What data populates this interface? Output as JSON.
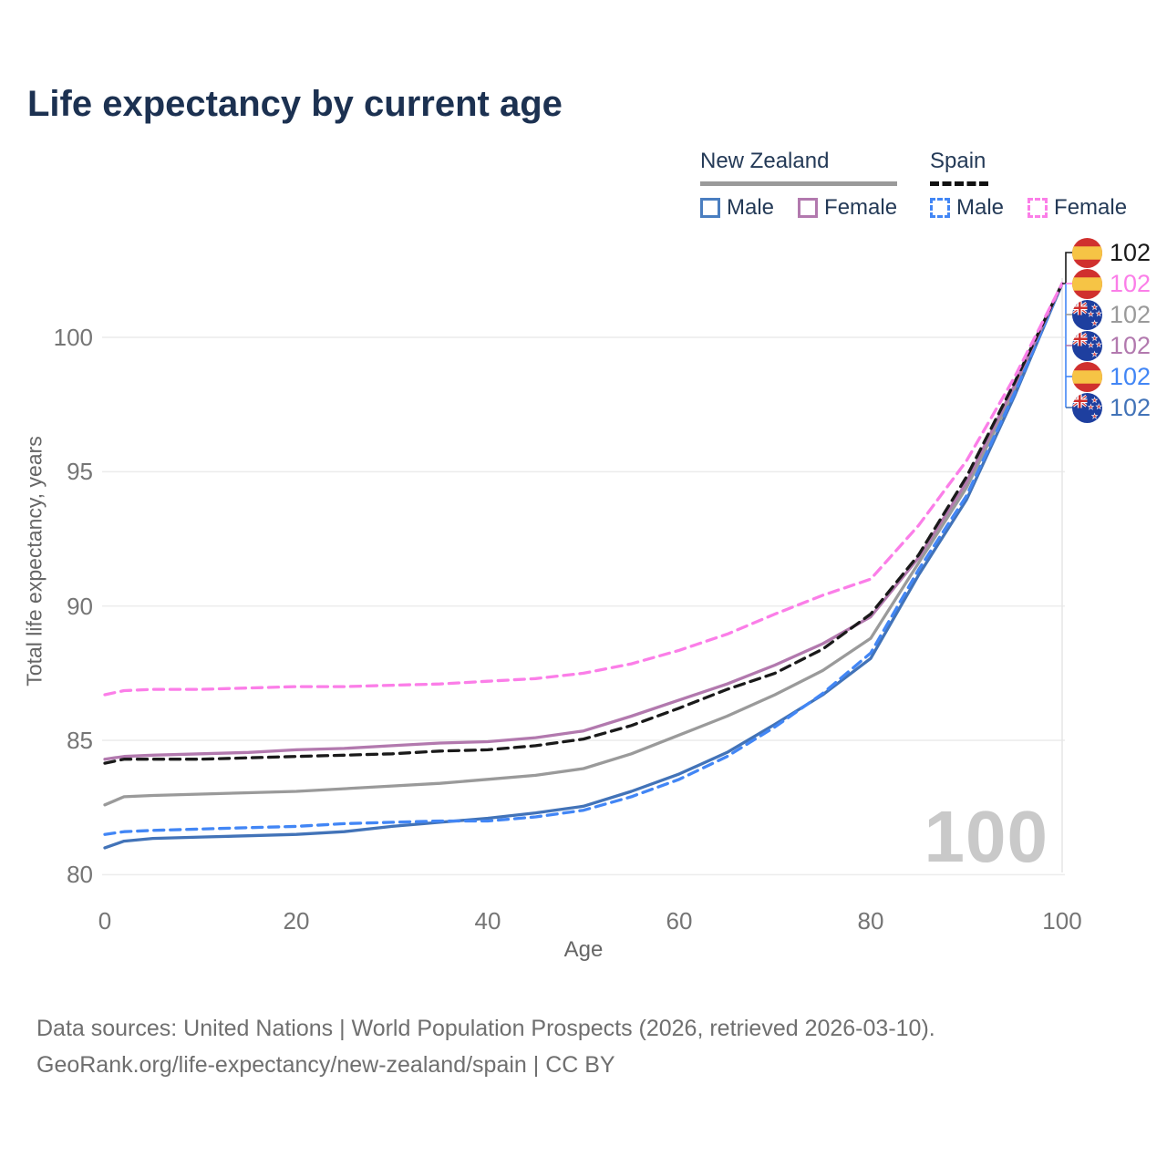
{
  "title": "Life expectancy by current age",
  "legend": {
    "groups": [
      {
        "name": "New Zealand",
        "items": [
          {
            "label": "Male"
          },
          {
            "label": "Female"
          }
        ]
      },
      {
        "name": "Spain",
        "items": [
          {
            "label": "Male"
          },
          {
            "label": "Female"
          }
        ]
      }
    ]
  },
  "chart_data": {
    "type": "line",
    "title": "Life expectancy by current age",
    "xlabel": "Age",
    "ylabel": "Total life expectancy, years",
    "xlim": [
      0,
      100
    ],
    "ylim": [
      79.5,
      102.5
    ],
    "xticks": [
      0,
      20,
      40,
      60,
      80,
      100
    ],
    "yticks": [
      80,
      85,
      90,
      95,
      100
    ],
    "grid": "horizontal",
    "legend_position": "top-right",
    "hover_age": "100",
    "x": [
      0,
      2,
      5,
      10,
      15,
      20,
      25,
      30,
      35,
      40,
      45,
      50,
      55,
      60,
      65,
      70,
      75,
      80,
      85,
      90,
      95,
      100
    ],
    "series": [
      {
        "id": "nz-total",
        "name": "New Zealand",
        "country": "new-zealand",
        "sex": "total",
        "color": "#9a9a9a",
        "dash": false,
        "values": [
          82.6,
          82.9,
          82.95,
          83.0,
          83.05,
          83.1,
          83.2,
          83.3,
          83.4,
          83.55,
          83.7,
          83.95,
          84.5,
          85.2,
          85.9,
          86.7,
          87.6,
          88.8,
          91.6,
          94.4,
          98.0,
          102
        ]
      },
      {
        "id": "nz-male",
        "name": "New Zealand Male",
        "country": "new-zealand",
        "sex": "male",
        "color": "#4273b8",
        "dash": false,
        "values": [
          81.0,
          81.25,
          81.35,
          81.4,
          81.45,
          81.5,
          81.6,
          81.8,
          81.95,
          82.1,
          82.3,
          82.55,
          83.1,
          83.75,
          84.55,
          85.6,
          86.7,
          88.05,
          91.15,
          93.95,
          97.8,
          102
        ]
      },
      {
        "id": "spain-male",
        "name": "Spain Male",
        "country": "spain",
        "sex": "male",
        "color": "#4286f5",
        "dash": true,
        "values": [
          81.5,
          81.6,
          81.65,
          81.7,
          81.75,
          81.8,
          81.9,
          81.95,
          82.0,
          82.0,
          82.15,
          82.4,
          82.9,
          83.55,
          84.4,
          85.5,
          86.75,
          88.25,
          91.35,
          94.1,
          97.9,
          102
        ]
      },
      {
        "id": "nz-female",
        "name": "New Zealand Female",
        "country": "new-zealand",
        "sex": "female",
        "color": "#b279ae",
        "dash": false,
        "values": [
          84.3,
          84.4,
          84.45,
          84.5,
          84.55,
          84.65,
          84.7,
          84.8,
          84.9,
          84.95,
          85.1,
          85.35,
          85.9,
          86.5,
          87.1,
          87.8,
          88.6,
          89.6,
          91.8,
          94.6,
          98.2,
          102
        ]
      },
      {
        "id": "spain-total",
        "name": "Spain",
        "country": "spain",
        "sex": "total",
        "color": "#1a1a1a",
        "dash": true,
        "values": [
          84.15,
          84.3,
          84.3,
          84.3,
          84.35,
          84.4,
          84.45,
          84.5,
          84.6,
          84.65,
          84.8,
          85.05,
          85.55,
          86.2,
          86.9,
          87.5,
          88.4,
          89.7,
          91.9,
          94.8,
          98.3,
          102
        ]
      },
      {
        "id": "spain-female",
        "name": "Spain Female",
        "country": "spain",
        "sex": "female",
        "color": "#fb7ee8",
        "dash": true,
        "values": [
          86.7,
          86.85,
          86.9,
          86.9,
          86.95,
          87.0,
          87.0,
          87.05,
          87.1,
          87.2,
          87.3,
          87.5,
          87.85,
          88.35,
          88.95,
          89.7,
          90.4,
          91.0,
          93.0,
          95.4,
          98.5,
          102
        ]
      }
    ]
  },
  "end_labels": [
    {
      "flag": "spain",
      "value": "102",
      "color": "#1a1a1a"
    },
    {
      "flag": "spain",
      "value": "102",
      "color": "#fb7ee8"
    },
    {
      "flag": "new-zealand",
      "value": "102",
      "color": "#9a9a9a"
    },
    {
      "flag": "new-zealand",
      "value": "102",
      "color": "#b279ae"
    },
    {
      "flag": "spain",
      "value": "102",
      "color": "#4286f5"
    },
    {
      "flag": "new-zealand",
      "value": "102",
      "color": "#4273b8"
    }
  ],
  "watermark": "100",
  "footer": {
    "line1": "Data sources: United Nations | World Population Prospects (2026, retrieved 2026-03-10).",
    "line2": "GeoRank.org/life-expectancy/new-zealand/spain | CC BY"
  },
  "colors": {
    "title_text": "#1c3151",
    "axis_text": "#757575",
    "gridline": "#ececec",
    "watermark": "#c9c9c9",
    "nz_male": "#4273b8",
    "nz_female": "#b279ae",
    "nz_total": "#9a9a9a",
    "spain_male": "#4286f5",
    "spain_female": "#fb7ee8",
    "spain_total": "#1a1a1a"
  }
}
